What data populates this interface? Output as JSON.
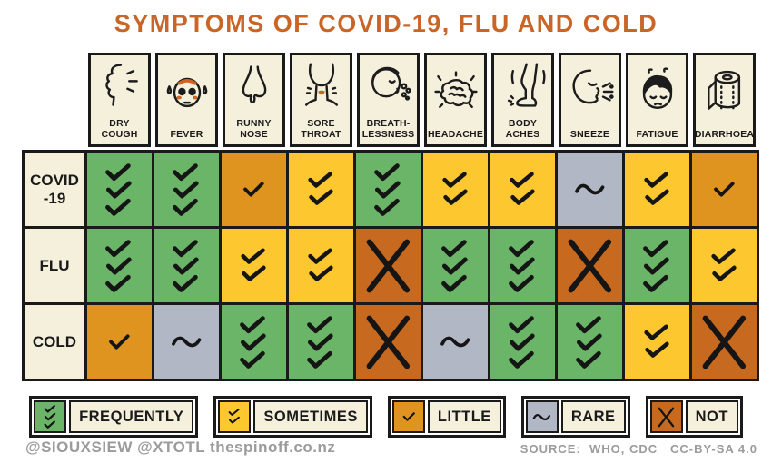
{
  "title": "SYMPTOMS OF COVID-19, FLU AND COLD",
  "colors": {
    "title": "#c96627",
    "cream": "#f5f0dc",
    "grid_line": "#1a1a1a",
    "footer_text": "#9b9b9b",
    "accent_orange": "#cc6524"
  },
  "table": {
    "columns": [
      {
        "id": "dry-cough",
        "label": "DRY\nCOUGH",
        "icon": "dry-cough-icon"
      },
      {
        "id": "fever",
        "label": "FEVER",
        "icon": "fever-icon"
      },
      {
        "id": "runny-nose",
        "label": "RUNNY\nNOSE",
        "icon": "runny-nose-icon"
      },
      {
        "id": "sore-throat",
        "label": "SORE\nTHROAT",
        "icon": "sore-throat-icon"
      },
      {
        "id": "breathlessness",
        "label": "BREATH-\nLESSNESS",
        "icon": "breathlessness-icon"
      },
      {
        "id": "headache",
        "label": "HEADACHE",
        "icon": "headache-icon"
      },
      {
        "id": "body-aches",
        "label": "BODY\nACHES",
        "icon": "body-aches-icon"
      },
      {
        "id": "sneeze",
        "label": "SNEEZE",
        "icon": "sneeze-icon"
      },
      {
        "id": "fatigue",
        "label": "FATIGUE",
        "icon": "fatigue-icon"
      },
      {
        "id": "diarrhoea",
        "label": "DIARRHOEA",
        "icon": "diarrhoea-icon"
      }
    ],
    "levels": {
      "frequently": {
        "color": "#6ab567",
        "symbol": "checks-3"
      },
      "sometimes": {
        "color": "#fcc72f",
        "symbol": "checks-2"
      },
      "little": {
        "color": "#df9420",
        "symbol": "check-1"
      },
      "rare": {
        "color": "#b2b7c6",
        "symbol": "tilde"
      },
      "not": {
        "color": "#c7691e",
        "symbol": "cross"
      }
    },
    "rows": [
      {
        "id": "covid-19",
        "label": "COVID\n-19",
        "cells": [
          "frequently",
          "frequently",
          "little",
          "sometimes",
          "frequently",
          "sometimes",
          "sometimes",
          "rare",
          "sometimes",
          "little"
        ]
      },
      {
        "id": "flu",
        "label": "FLU",
        "cells": [
          "frequently",
          "frequently",
          "sometimes",
          "sometimes",
          "not",
          "frequently",
          "frequently",
          "not",
          "frequently",
          "sometimes"
        ]
      },
      {
        "id": "cold",
        "label": "COLD",
        "cells": [
          "little",
          "rare",
          "frequently",
          "frequently",
          "not",
          "rare",
          "frequently",
          "frequently",
          "sometimes",
          "not"
        ]
      }
    ]
  },
  "legend": {
    "items": [
      {
        "key": "frequently",
        "label": "FREQUENTLY"
      },
      {
        "key": "sometimes",
        "label": "SOMETIMES"
      },
      {
        "key": "little",
        "label": "LITTLE"
      },
      {
        "key": "rare",
        "label": "RARE"
      },
      {
        "key": "not",
        "label": "NOT"
      }
    ]
  },
  "footer": {
    "credits": "@SIOUXSIEW @XTOTL thespinoff.co.nz",
    "source": "SOURCE:  WHO, CDC   CC-BY-SA 4.0"
  },
  "chart_data": {
    "type": "table",
    "title": "SYMPTOMS OF COVID-19, FLU AND COLD",
    "columns": [
      "DRY COUGH",
      "FEVER",
      "RUNNY NOSE",
      "SORE THROAT",
      "BREATH-LESSNESS",
      "HEADACHE",
      "BODY ACHES",
      "SNEEZE",
      "FATIGUE",
      "DIARRHOEA"
    ],
    "rows": [
      "COVID-19",
      "FLU",
      "COLD"
    ],
    "scale": [
      "frequently",
      "sometimes",
      "little",
      "rare",
      "not"
    ],
    "values": [
      [
        "frequently",
        "frequently",
        "little",
        "sometimes",
        "frequently",
        "sometimes",
        "sometimes",
        "rare",
        "sometimes",
        "little"
      ],
      [
        "frequently",
        "frequently",
        "sometimes",
        "sometimes",
        "not",
        "frequently",
        "frequently",
        "not",
        "frequently",
        "sometimes"
      ],
      [
        "little",
        "rare",
        "frequently",
        "frequently",
        "not",
        "rare",
        "frequently",
        "frequently",
        "sometimes",
        "not"
      ]
    ],
    "legend_position": "bottom",
    "source": "WHO, CDC",
    "license": "CC-BY-SA 4.0"
  }
}
